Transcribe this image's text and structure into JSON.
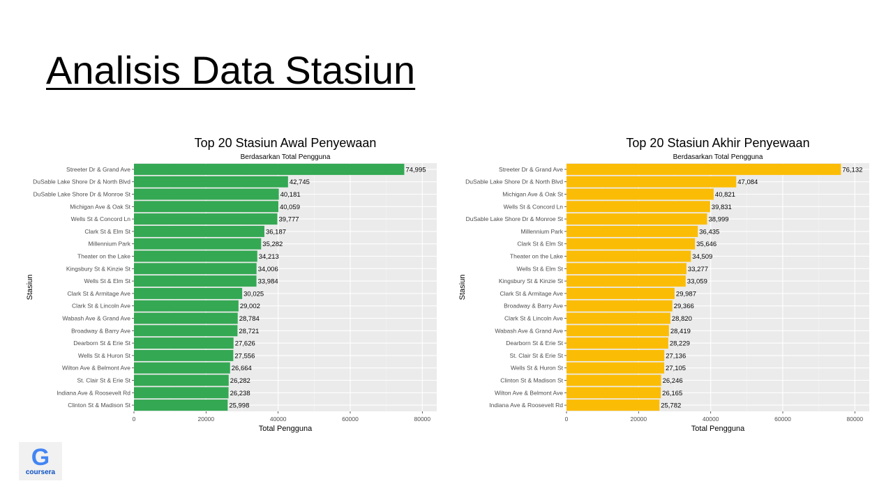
{
  "slide": {
    "title": "Analisis Data Stasiun"
  },
  "logo": {
    "glyph": "G",
    "text": "coursera"
  },
  "chart_data": [
    {
      "type": "bar",
      "orientation": "horizontal",
      "title": "Top 20 Stasiun Awal Penyewaan",
      "subtitle": "Berdasarkan Total Pengguna",
      "xlabel": "Total Pengguna",
      "ylabel": "Stasiun",
      "xlim": [
        0,
        84000
      ],
      "xticks": [
        0,
        20000,
        40000,
        60000,
        80000
      ],
      "xtick_labels": [
        "0",
        "20000",
        "40000",
        "60000",
        "80000"
      ],
      "grid": true,
      "color": "#34a853",
      "categories": [
        "Streeter Dr & Grand Ave",
        "DuSable Lake Shore Dr & North Blvd",
        "DuSable Lake Shore Dr & Monroe St",
        "Michigan Ave & Oak St",
        "Wells St & Concord Ln",
        "Clark St & Elm St",
        "Millennium Park",
        "Theater on the Lake",
        "Kingsbury St & Kinzie St",
        "Wells St & Elm St",
        "Clark St & Armitage Ave",
        "Clark St & Lincoln Ave",
        "Wabash Ave & Grand Ave",
        "Broadway & Barry Ave",
        "Dearborn St & Erie St",
        "Wells St & Huron St",
        "Wilton Ave & Belmont Ave",
        "St. Clair St & Erie St",
        "Indiana Ave & Roosevelt Rd",
        "Clinton St & Madison St"
      ],
      "values": [
        74995,
        42745,
        40181,
        40059,
        39777,
        36187,
        35282,
        34213,
        34006,
        33984,
        30025,
        29002,
        28784,
        28721,
        27626,
        27556,
        26664,
        26282,
        26238,
        25998
      ],
      "value_labels": [
        "74,995",
        "42,745",
        "40,181",
        "40,059",
        "39,777",
        "36,187",
        "35,282",
        "34,213",
        "34,006",
        "33,984",
        "30,025",
        "29,002",
        "28,784",
        "28,721",
        "27,626",
        "27,556",
        "26,664",
        "26,282",
        "26,238",
        "25,998"
      ]
    },
    {
      "type": "bar",
      "orientation": "horizontal",
      "title": "Top 20 Stasiun Akhir Penyewaan",
      "subtitle": "Berdasarkan Total Pengguna",
      "xlabel": "Total Pengguna",
      "ylabel": "Stasiun",
      "xlim": [
        0,
        84000
      ],
      "xticks": [
        0,
        20000,
        40000,
        60000,
        80000
      ],
      "xtick_labels": [
        "0",
        "20000",
        "40000",
        "60000",
        "80000"
      ],
      "grid": true,
      "color": "#fbbc05",
      "categories": [
        "Streeter Dr & Grand Ave",
        "DuSable Lake Shore Dr & North Blvd",
        "Michigan Ave & Oak St",
        "Wells St & Concord Ln",
        "DuSable Lake Shore Dr & Monroe St",
        "Millennium Park",
        "Clark St & Elm St",
        "Theater on the Lake",
        "Wells St & Elm St",
        "Kingsbury St & Kinzie St",
        "Clark St & Armitage Ave",
        "Broadway & Barry Ave",
        "Clark St & Lincoln Ave",
        "Wabash Ave & Grand Ave",
        "Dearborn St & Erie St",
        "St. Clair St & Erie St",
        "Wells St & Huron St",
        "Clinton St & Madison St",
        "Wilton Ave & Belmont Ave",
        "Indiana Ave & Roosevelt Rd"
      ],
      "values": [
        76132,
        47084,
        40821,
        39831,
        38999,
        36435,
        35646,
        34509,
        33277,
        33059,
        29987,
        29366,
        28820,
        28419,
        28229,
        27136,
        27105,
        26246,
        26165,
        25782
      ],
      "value_labels": [
        "76,132",
        "47,084",
        "40,821",
        "39,831",
        "38,999",
        "36,435",
        "35,646",
        "34,509",
        "33,277",
        "33,059",
        "29,987",
        "29,366",
        "28,820",
        "28,419",
        "28,229",
        "27,136",
        "27,105",
        "26,246",
        "26,165",
        "25,782"
      ]
    }
  ]
}
